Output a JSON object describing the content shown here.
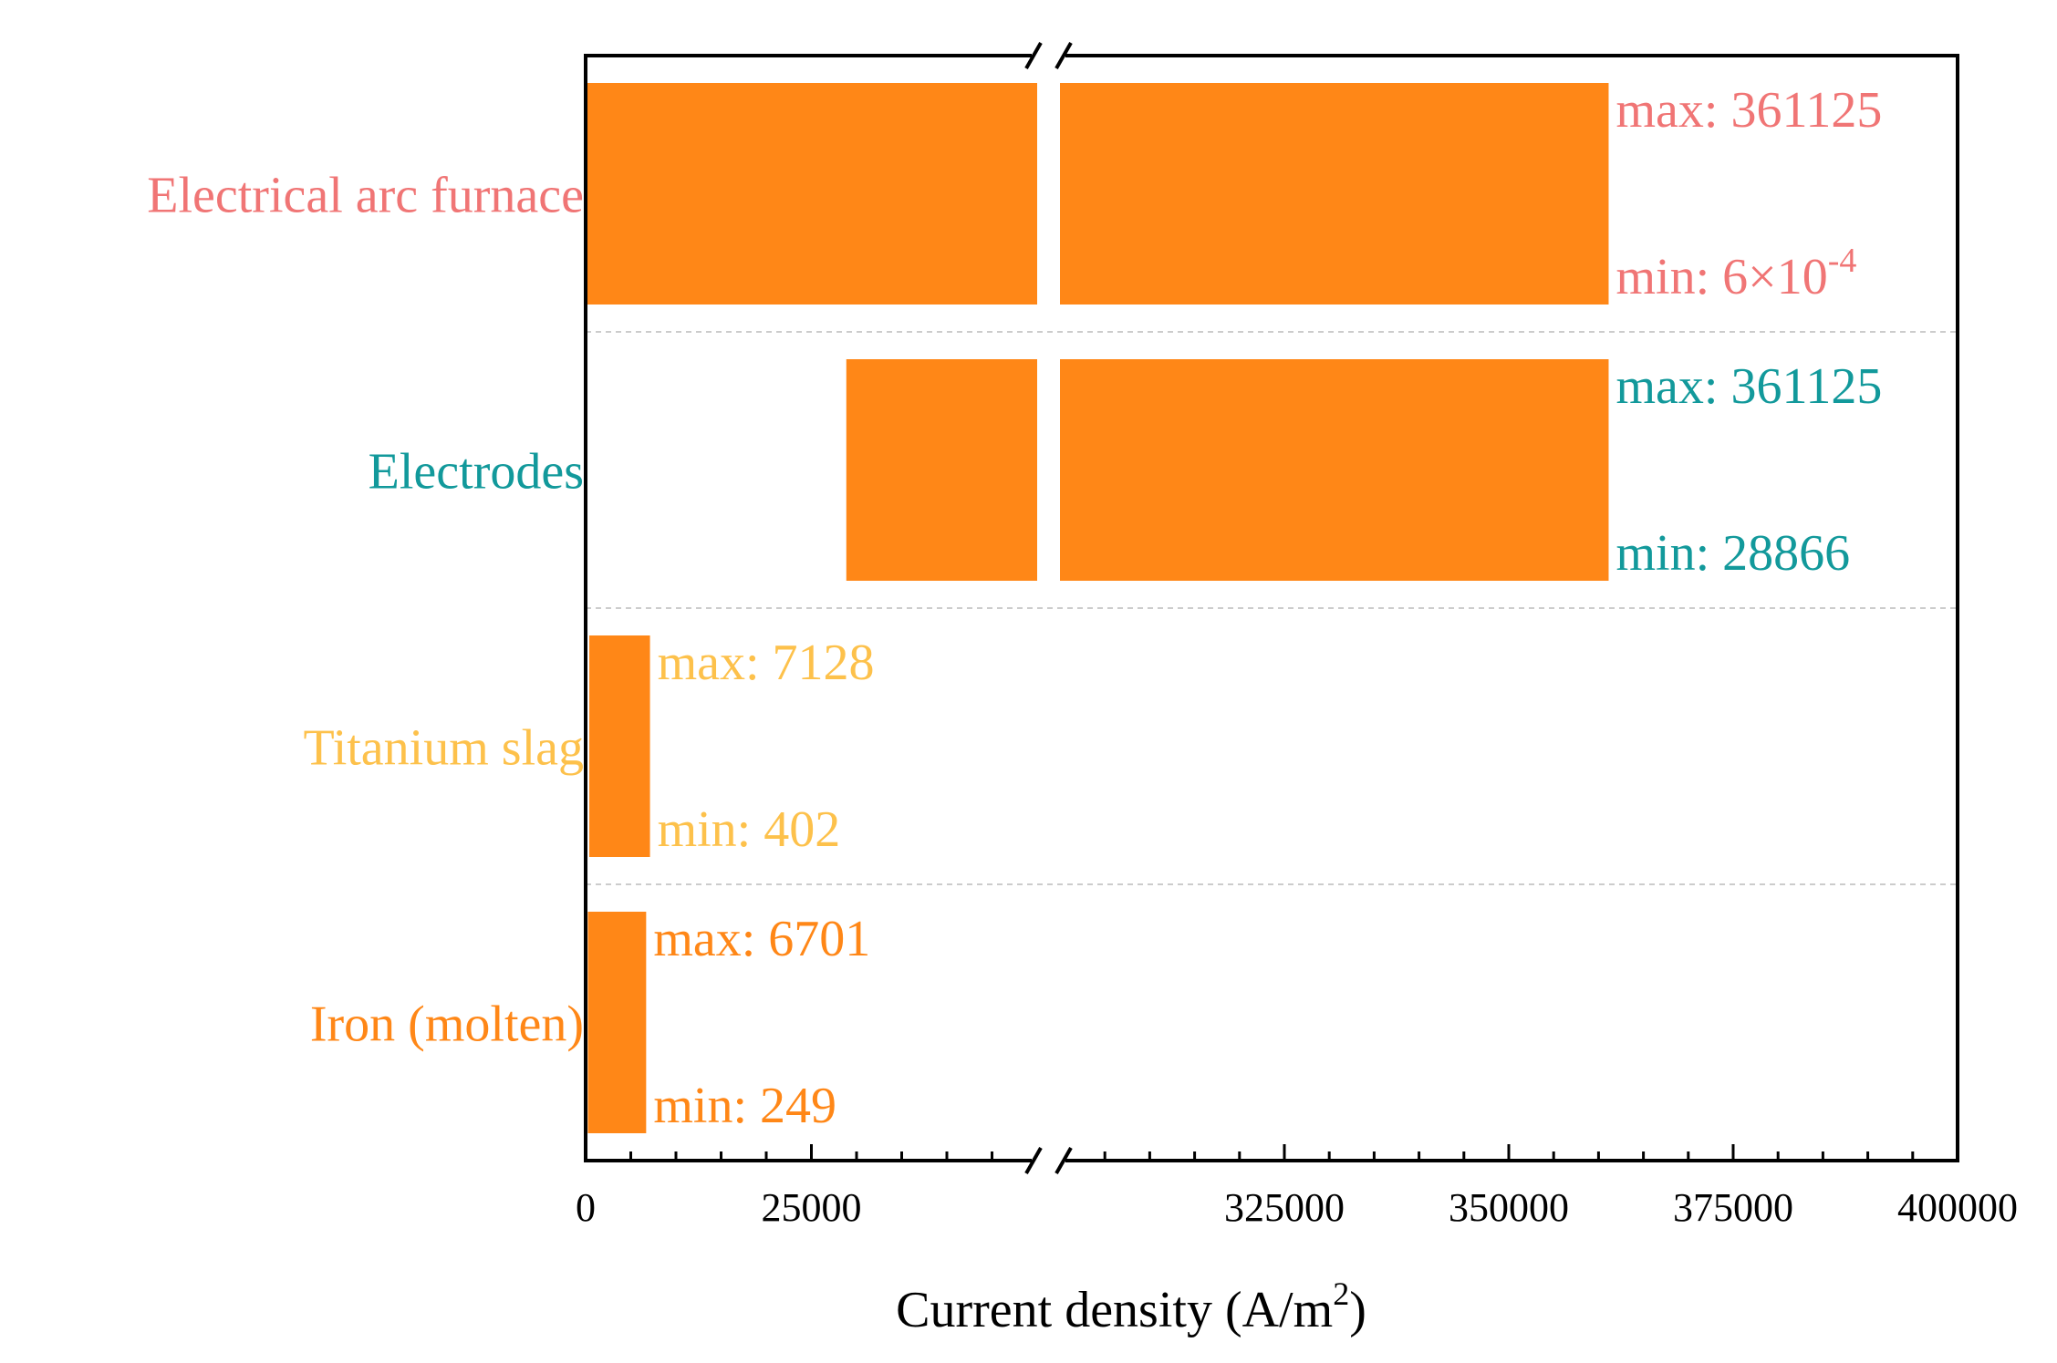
{
  "chart_data": {
    "type": "bar",
    "orientation": "horizontal",
    "title": "",
    "xlabel": "Current density (A/m",
    "xlabel_superscript": "2",
    "xlabel_suffix": ")",
    "ylabel": "",
    "axis_break": {
      "from": 50000,
      "to": 300000
    },
    "segments": [
      {
        "range": [
          0,
          50000
        ],
        "ticks": [
          0,
          25000
        ],
        "tick_labels": [
          "0",
          "25000"
        ]
      },
      {
        "range": [
          300000,
          400000
        ],
        "ticks": [
          325000,
          350000,
          375000,
          400000
        ],
        "tick_labels": [
          "325000",
          "350000",
          "375000",
          "400000"
        ]
      }
    ],
    "bar_color": "#FF8717",
    "categories": [
      {
        "name": "Electrical arc furnace",
        "color": "#F07575",
        "min": 0.0006,
        "max": 361125,
        "max_label": "max: 361125",
        "min_label": "min: 6×10",
        "min_label_exp": "-4"
      },
      {
        "name": "Electrodes",
        "color": "#12999B",
        "min": 28866,
        "max": 361125,
        "max_label": "max: 361125",
        "min_label": "min: 28866",
        "min_label_exp": ""
      },
      {
        "name": "Titanium slag",
        "color": "#FDC14B",
        "min": 402,
        "max": 7128,
        "max_label": "max: 7128",
        "min_label": "min: 402",
        "min_label_exp": ""
      },
      {
        "name": "Iron (molten)",
        "color": "#FF8717",
        "min": 249,
        "max": 6701,
        "max_label": "max: 6701",
        "min_label": "min: 249",
        "min_label_exp": ""
      }
    ],
    "grid": false
  }
}
